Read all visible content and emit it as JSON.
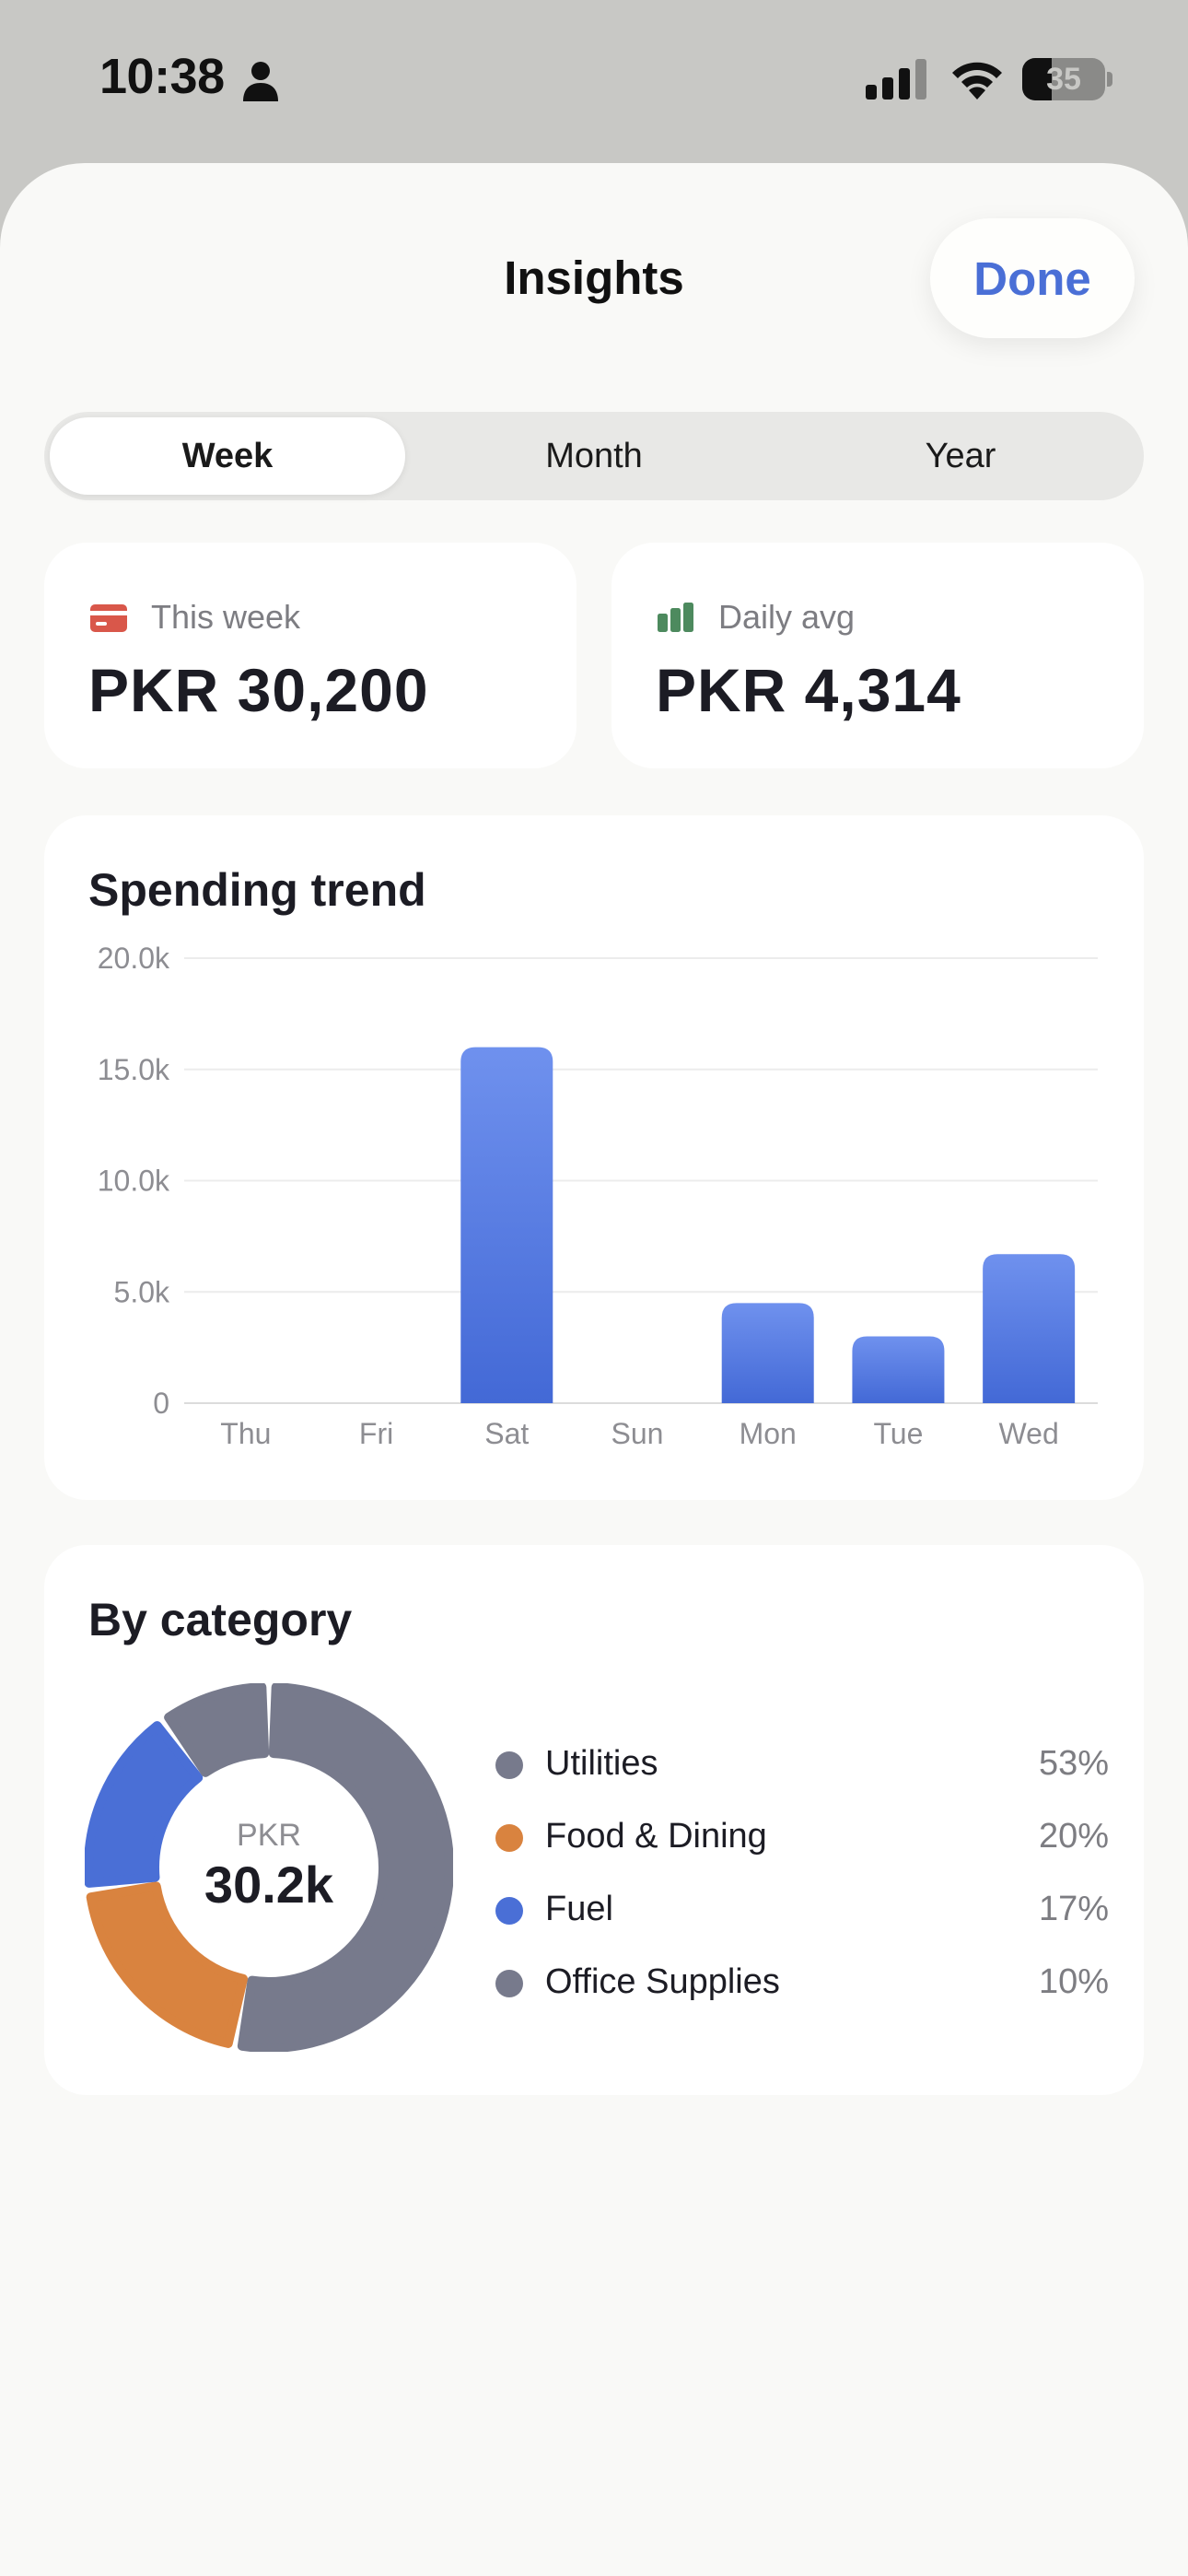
{
  "status_bar": {
    "time": "10:38",
    "battery": "35",
    "battery_level": 0.35,
    "icons": [
      "person-icon",
      "signal-icon",
      "wifi-icon",
      "battery-icon"
    ]
  },
  "header": {
    "title": "Insights",
    "done_label": "Done"
  },
  "period_tabs": [
    {
      "label": "Week",
      "active": true
    },
    {
      "label": "Month",
      "active": false
    },
    {
      "label": "Year",
      "active": false
    }
  ],
  "stats": {
    "this_week": {
      "label": "This week",
      "value": "PKR 30,200",
      "icon": "card-icon",
      "icon_color": "#d9574a"
    },
    "daily_avg": {
      "label": "Daily avg",
      "value": "PKR 4,314",
      "icon": "bar-chart-icon",
      "icon_color": "#4d8a5e"
    }
  },
  "trend": {
    "title": "Spending trend",
    "chart_data": {
      "type": "bar",
      "title": "Spending trend",
      "categories": [
        "Thu",
        "Fri",
        "Sat",
        "Sun",
        "Mon",
        "Tue",
        "Wed"
      ],
      "values": [
        0,
        0,
        16000,
        0,
        4500,
        3000,
        6700
      ],
      "y_ticks": [
        0,
        5000,
        10000,
        15000,
        20000
      ],
      "y_tick_labels": [
        "0",
        "5.0k",
        "10.0k",
        "15.0k",
        "20.0k"
      ],
      "ylim": [
        0,
        20000
      ],
      "grid": true,
      "bar_color": "#4a6fd6"
    }
  },
  "category": {
    "title": "By category",
    "center_unit": "PKR",
    "center_total": "30.2k",
    "chart_data": {
      "type": "pie",
      "categories": [
        "Utilities",
        "Food & Dining",
        "Fuel",
        "Office Supplies"
      ],
      "values": [
        53,
        20,
        17,
        10
      ],
      "colors": [
        "#777a8c",
        "#d9833f",
        "#4a6fd6",
        "#777a8c"
      ]
    },
    "items": [
      {
        "name": "Utilities",
        "pct": "53%",
        "color": "#777a8c"
      },
      {
        "name": "Food & Dining",
        "pct": "20%",
        "color": "#d9833f"
      },
      {
        "name": "Fuel",
        "pct": "17%",
        "color": "#4a6fd6"
      },
      {
        "name": "Office Supplies",
        "pct": "10%",
        "color": "#777a8c"
      }
    ]
  }
}
